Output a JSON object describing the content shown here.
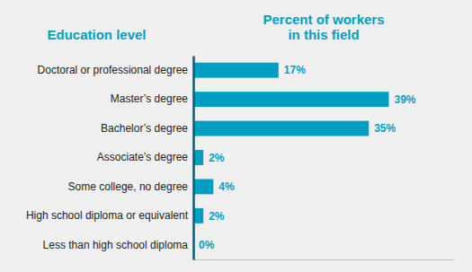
{
  "chart_data": {
    "type": "bar",
    "orientation": "horizontal",
    "xlabel": "Percent of workers\nin this field",
    "ylabel": "Education level",
    "categories": [
      "Less than high school diploma",
      "High school diploma or equivalent",
      "Some college, no degree",
      "Associate’s degree",
      "Bachelor’s degree",
      "Master’s degree",
      "Doctoral or professional degree"
    ],
    "values": [
      0,
      2,
      4,
      2,
      35,
      39,
      17
    ],
    "value_labels": [
      "0%",
      "2%",
      "4%",
      "2%",
      "35%",
      "39%",
      "17%"
    ],
    "data_labels": true,
    "color": "#009fc2",
    "xlim": [
      0,
      52
    ],
    "tick_labels": "y",
    "grid": false
  }
}
